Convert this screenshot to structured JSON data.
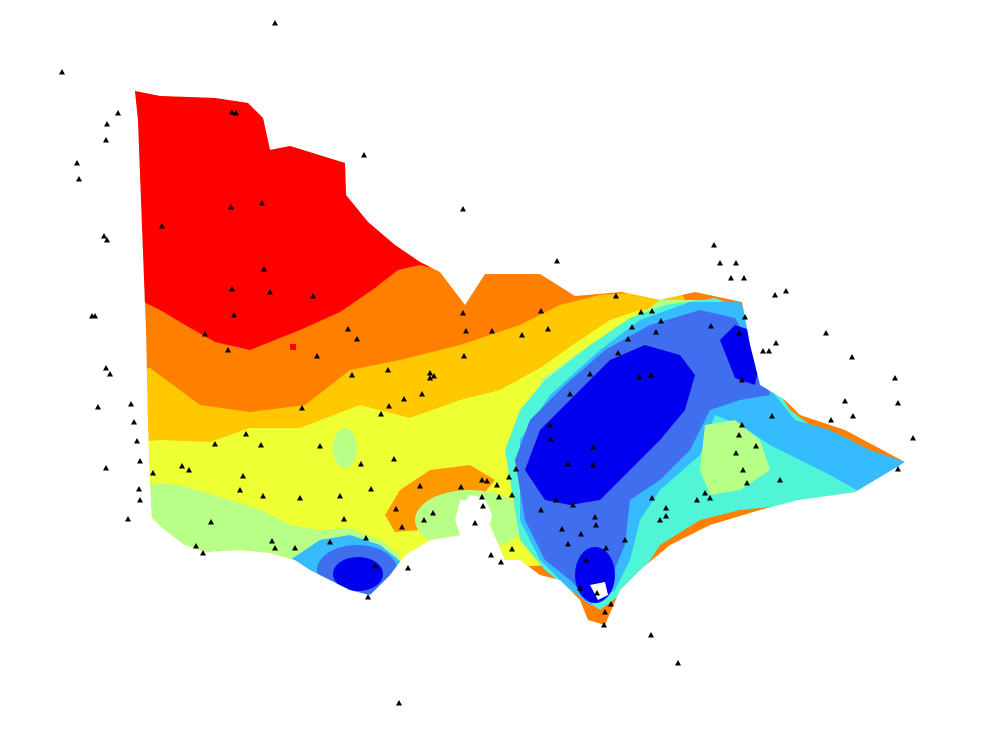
{
  "map": {
    "type": "interpolated-surface",
    "colors": {
      "band_1": "#ff0000",
      "band_2": "#ff7f00",
      "band_3": "#ffc800",
      "band_4": "#eeff33",
      "band_5": "#b8ff88",
      "band_6": "#50f5d8",
      "band_7": "#36bbff",
      "band_8": "#3f6fef",
      "band_9": "#0000ee",
      "station_marker": "#000000"
    },
    "marker_icon": "triangle-icon"
  }
}
